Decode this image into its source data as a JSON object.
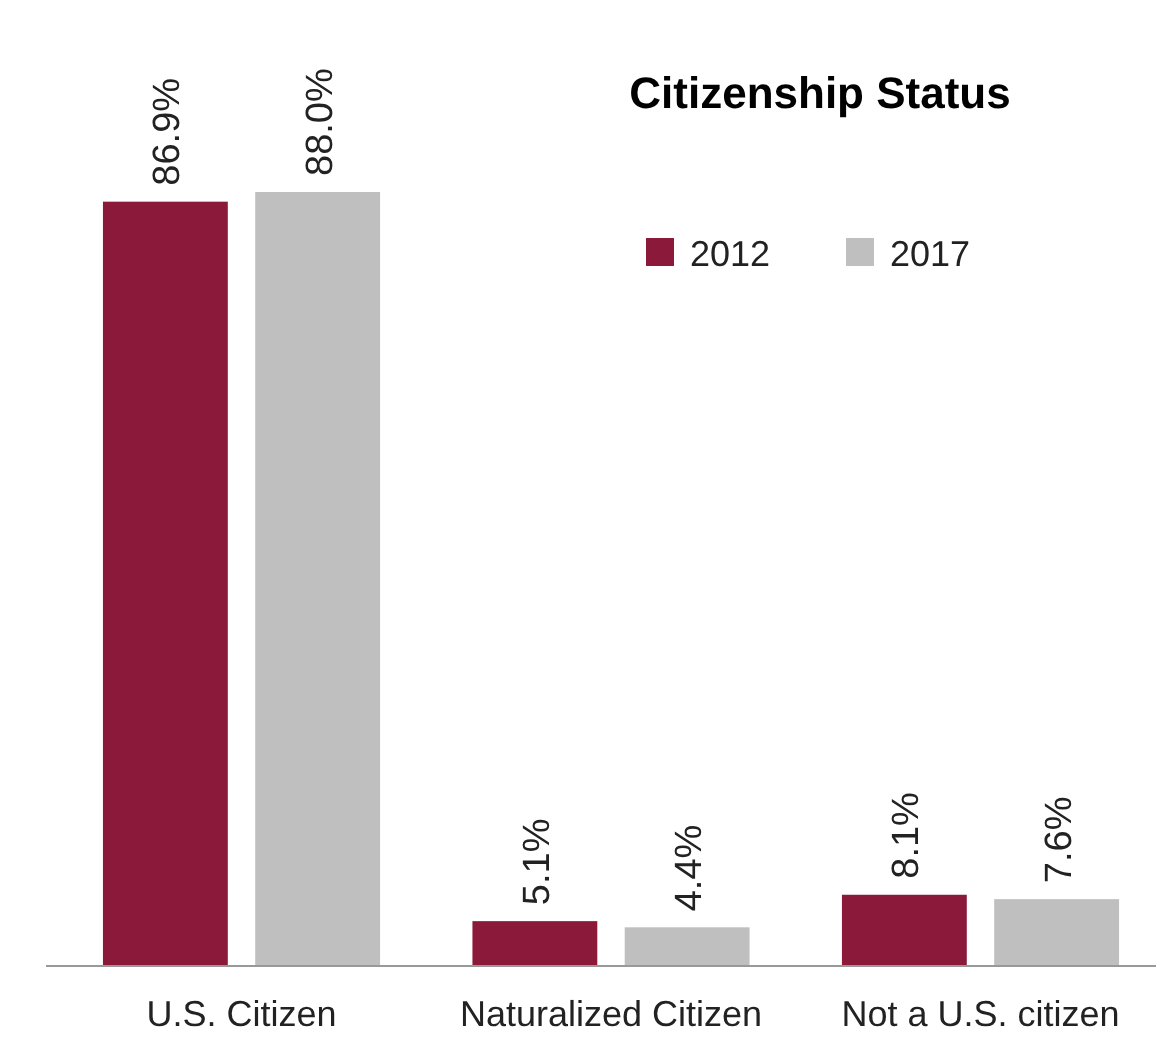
{
  "chart_data": {
    "type": "bar",
    "title": "Citizenship Status",
    "categories": [
      "U.S. Citizen",
      "Naturalized Citizen",
      "Not a U.S. citizen"
    ],
    "series": [
      {
        "name": "2012",
        "color": "#8b1a3a",
        "values": [
          86.9,
          5.1,
          8.1
        ],
        "value_labels": [
          "86.9%",
          "5.1%",
          "8.1%"
        ]
      },
      {
        "name": "2017",
        "color": "#bfbfbf",
        "values": [
          88.0,
          4.4,
          7.6
        ],
        "value_labels": [
          "88.0%",
          "4.4%",
          "7.6%"
        ]
      }
    ],
    "legend": "top right"
  }
}
